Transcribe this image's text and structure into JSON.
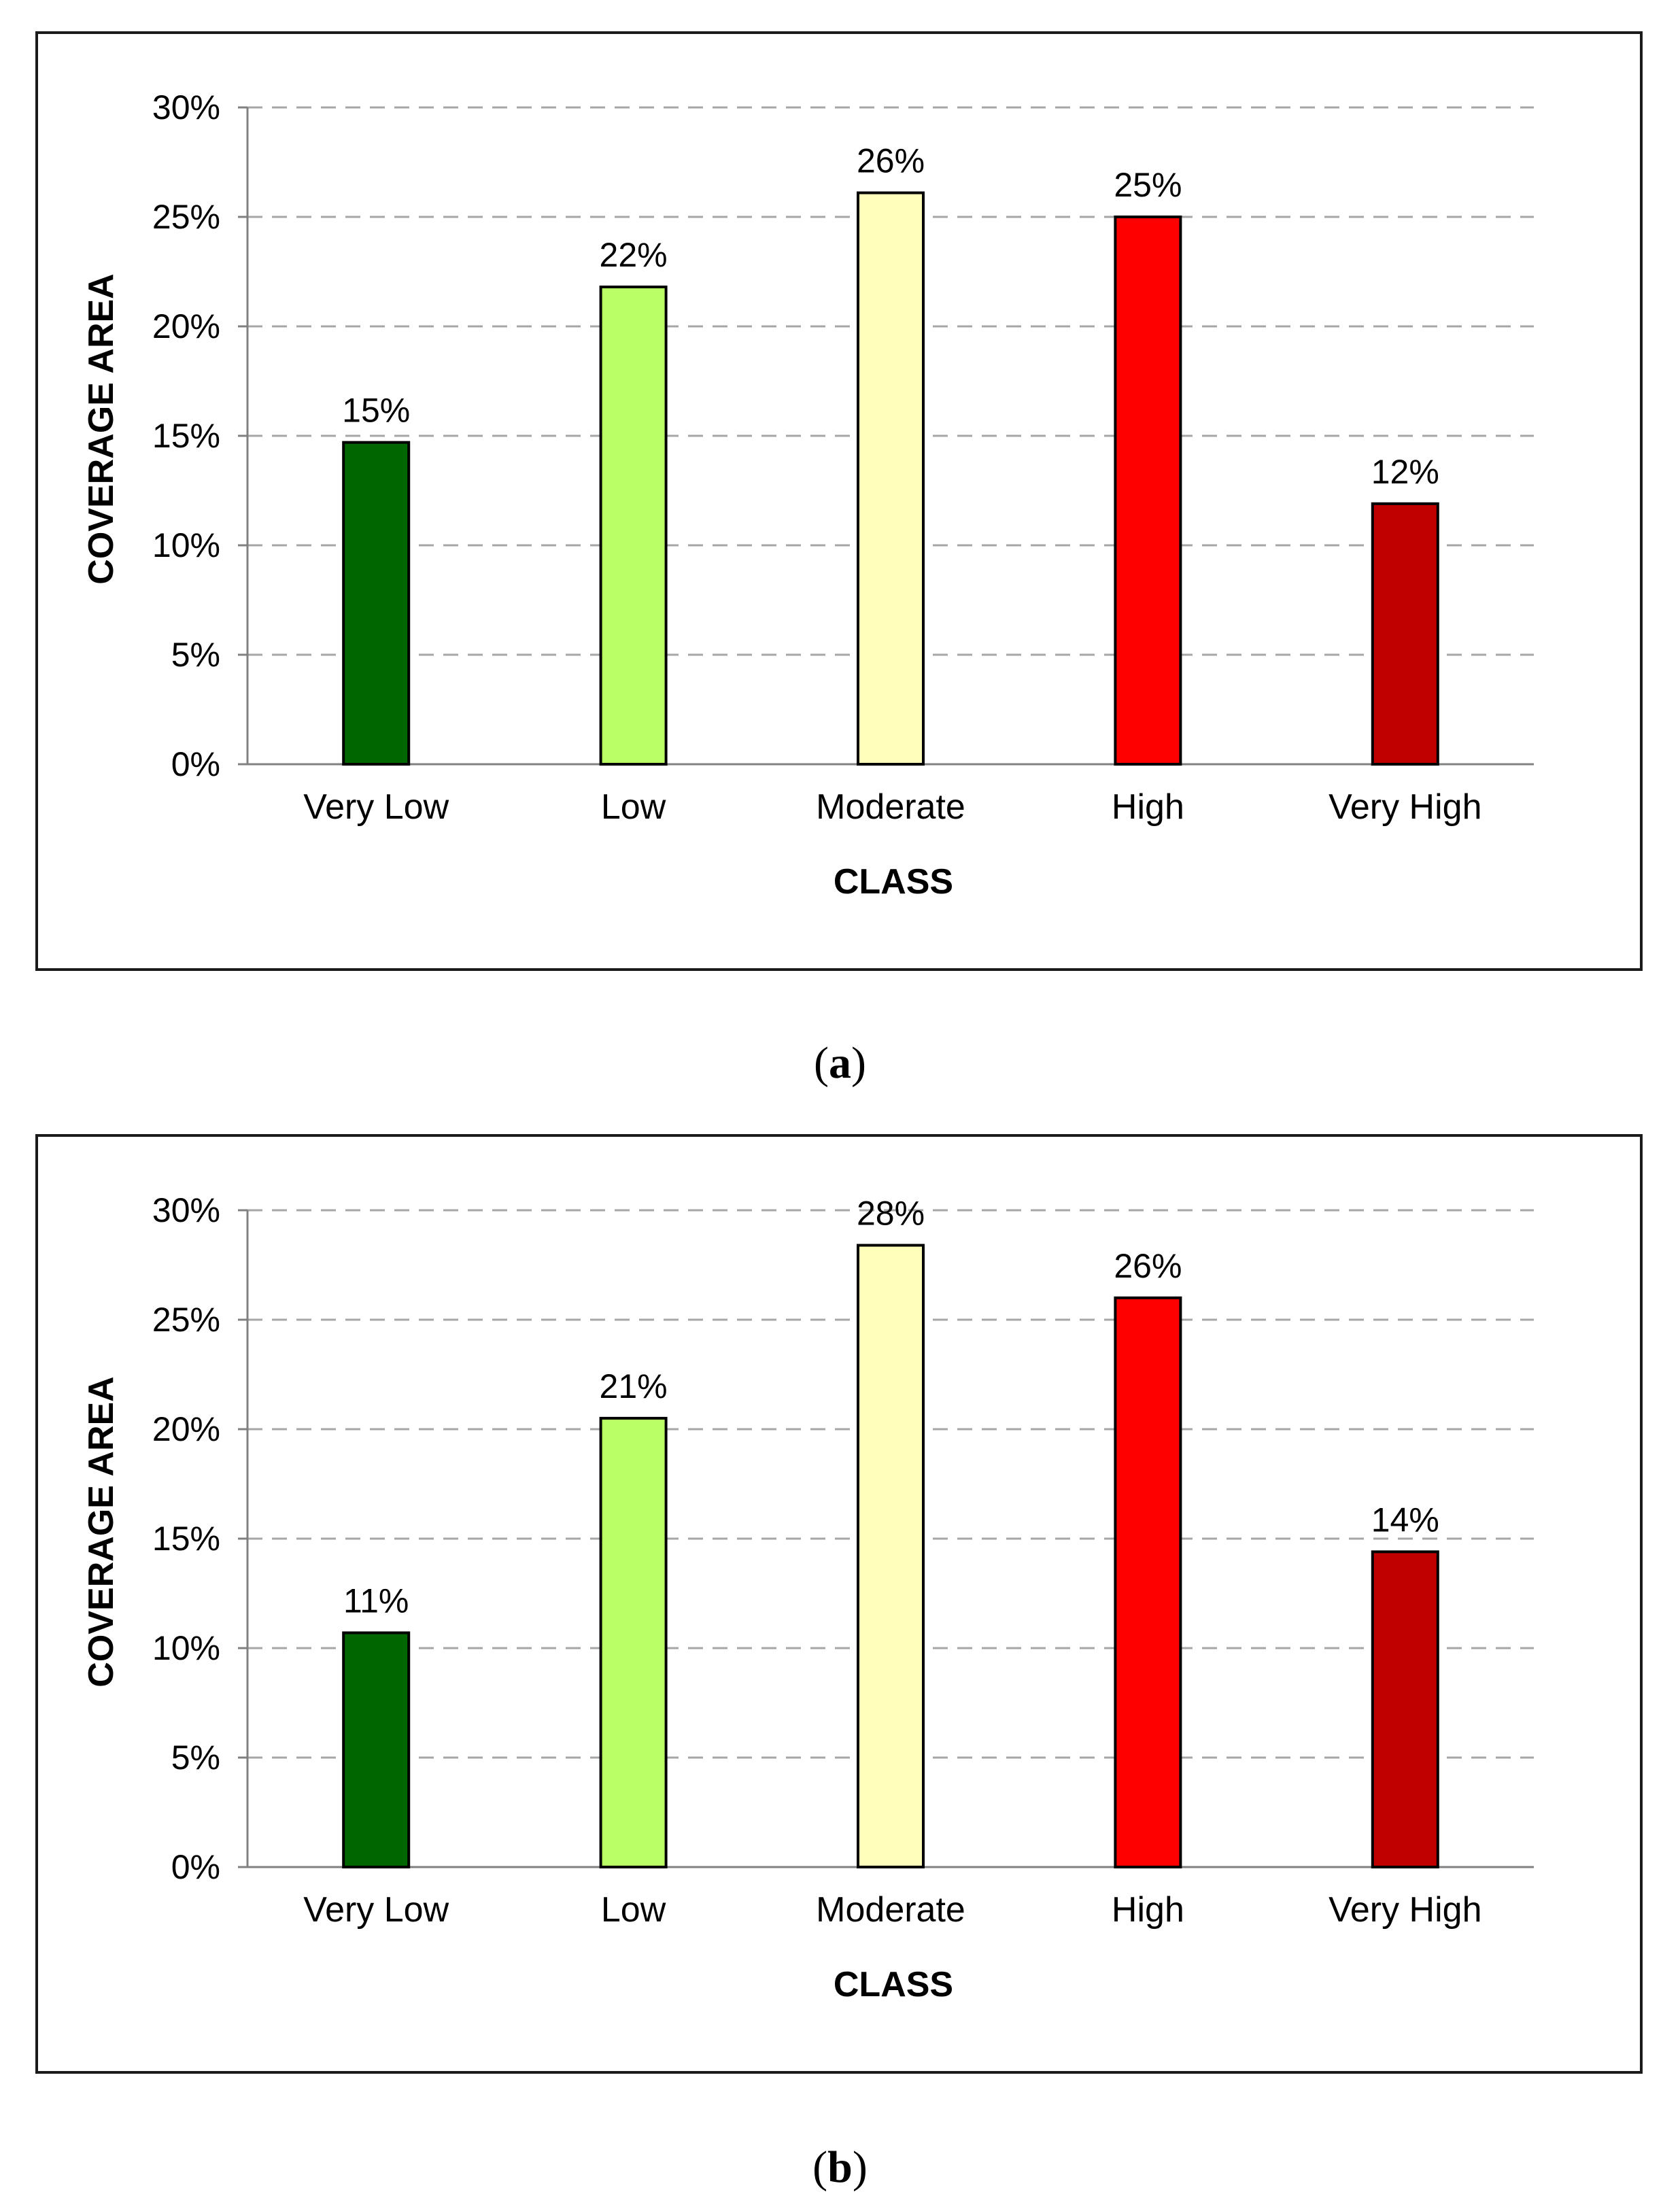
{
  "chart_data": [
    {
      "id": "a",
      "type": "bar",
      "caption_letter": "a",
      "categories": [
        "Very Low",
        "Low",
        "Moderate",
        "High",
        "Very High"
      ],
      "values": [
        14.7,
        21.8,
        26.1,
        25.0,
        11.9
      ],
      "data_labels": [
        "15%",
        "22%",
        "26%",
        "25%",
        "12%"
      ],
      "colors": [
        "#006600",
        "#bbff66",
        "#ffffbb",
        "#ff0000",
        "#c00000"
      ],
      "xlabel": "CLASS",
      "ylabel": "COVERAGE AREA",
      "ylim": [
        0,
        30
      ],
      "yticks": [
        0,
        5,
        10,
        15,
        20,
        25,
        30
      ],
      "ytick_labels": [
        "0%",
        "5%",
        "10%",
        "15%",
        "20%",
        "25%",
        "30%"
      ],
      "grid": "horizontal dashed"
    },
    {
      "id": "b",
      "type": "bar",
      "caption_letter": "b",
      "categories": [
        "Very Low",
        "Low",
        "Moderate",
        "High",
        "Very High"
      ],
      "values": [
        10.7,
        20.5,
        28.4,
        26.0,
        14.4
      ],
      "data_labels": [
        "11%",
        "21%",
        "28%",
        "26%",
        "14%"
      ],
      "colors": [
        "#006600",
        "#bbff66",
        "#ffffbb",
        "#ff0000",
        "#c00000"
      ],
      "xlabel": "CLASS",
      "ylabel": "COVERAGE AREA",
      "ylim": [
        0,
        30
      ],
      "yticks": [
        0,
        5,
        10,
        15,
        20,
        25,
        30
      ],
      "ytick_labels": [
        "0%",
        "5%",
        "10%",
        "15%",
        "20%",
        "25%",
        "30%"
      ],
      "grid": "horizontal dashed"
    }
  ]
}
